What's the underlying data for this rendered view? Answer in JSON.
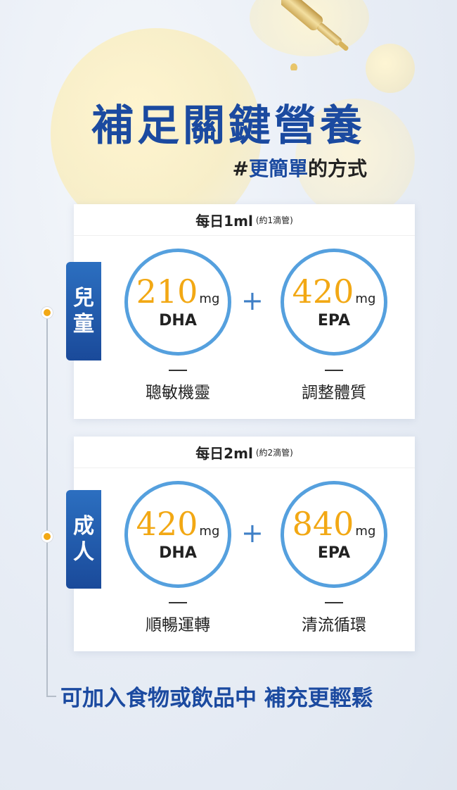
{
  "header": {
    "title": "補足關鍵營養",
    "subtitle_prefix": "#",
    "subtitle_highlight": "更簡單",
    "subtitle_rest": "的方式"
  },
  "children": {
    "tab_line1": "兒",
    "tab_line2": "童",
    "dose_main": "每日1ml",
    "dose_note": "(約1滴管)",
    "left": {
      "amount": "210",
      "unit": "mg",
      "nutrient": "DHA",
      "benefit": "聰敏機靈"
    },
    "plus": "+",
    "right": {
      "amount": "420",
      "unit": "mg",
      "nutrient": "EPA",
      "benefit": "調整體質"
    }
  },
  "adults": {
    "tab_line1": "成",
    "tab_line2": "人",
    "dose_main": "每日2ml",
    "dose_note": "(約2滴管)",
    "left": {
      "amount": "420",
      "unit": "mg",
      "nutrient": "DHA",
      "benefit": "順暢運轉"
    },
    "plus": "+",
    "right": {
      "amount": "840",
      "unit": "mg",
      "nutrient": "EPA",
      "benefit": "清流循環"
    }
  },
  "footer": {
    "text": "可加入食物或飲品中 補充更輕鬆"
  },
  "colors": {
    "brand_blue": "#1b4aa0",
    "accent_gold": "#f2a814",
    "ring_blue": "#55a0de"
  },
  "icons": {
    "dropper": "dropper-icon",
    "timeline_dot": "timeline-dot-icon"
  }
}
